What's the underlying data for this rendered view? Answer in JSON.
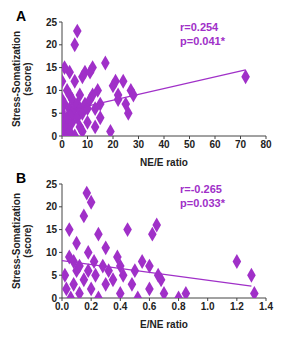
{
  "chart_data": [
    {
      "type": "scatter",
      "panel": "A",
      "x_label": "NE/E ratio",
      "y_label": "Stress-Somatization (score)",
      "color": "#a030c8",
      "marker": "diamond",
      "annotations": [
        "r=0.254",
        "p=0.041*"
      ],
      "xlim": [
        0,
        80
      ],
      "xticks": [
        0,
        10,
        20,
        30,
        40,
        50,
        60,
        70,
        80
      ],
      "ylim": [
        0,
        25
      ],
      "yticks": [
        0,
        5,
        10,
        15,
        20,
        25
      ],
      "x": [
        0,
        0,
        0,
        0,
        1,
        1,
        1,
        1,
        1,
        2,
        2,
        2,
        2,
        3,
        3,
        3,
        3,
        4,
        4,
        4,
        5,
        5,
        5,
        5,
        6,
        6,
        6,
        7,
        7,
        7,
        8,
        8,
        8,
        9,
        9,
        10,
        10,
        11,
        11,
        12,
        12,
        13,
        13,
        14,
        15,
        15,
        17,
        19,
        20,
        21,
        22,
        22,
        25,
        24,
        26,
        27,
        28,
        72
      ],
      "values": [
        2,
        5,
        8,
        12,
        0,
        3,
        7,
        15,
        1,
        2,
        4,
        10,
        0,
        1,
        6,
        9,
        14,
        3,
        5,
        8,
        0,
        6,
        12,
        20,
        23,
        4,
        7,
        2,
        9,
        6,
        13,
        5,
        1,
        14,
        7,
        6,
        3,
        8,
        14,
        15,
        9,
        6,
        2,
        10,
        4,
        7,
        16,
        1,
        11,
        12,
        9,
        8,
        7,
        12,
        5,
        10,
        9,
        13
      ],
      "trend_line": {
        "x": [
          0,
          72
        ],
        "values": [
          5.3,
          14.5
        ]
      }
    },
    {
      "type": "scatter",
      "panel": "B",
      "x_label": "E/NE ratio",
      "y_label": "Stress-Somatization (score)",
      "color": "#a030c8",
      "marker": "diamond",
      "annotations": [
        "r=-0.265",
        "p=0.033*"
      ],
      "xlim": [
        0,
        1.4
      ],
      "xticks": [
        {
          "value": 0,
          "label": "0.0"
        },
        0.2,
        0.4,
        0.6,
        0.8,
        {
          "value": 1,
          "label": "1.0"
        },
        1.2,
        1.4
      ],
      "ylim": [
        0,
        25
      ],
      "yticks": [
        0,
        5,
        10,
        15,
        20,
        25
      ],
      "x": [
        0.02,
        0.03,
        0.05,
        0.05,
        0.06,
        0.08,
        0.08,
        0.1,
        0.1,
        0.12,
        0.12,
        0.15,
        0.15,
        0.17,
        0.18,
        0.18,
        0.2,
        0.2,
        0.22,
        0.23,
        0.25,
        0.25,
        0.28,
        0.3,
        0.3,
        0.32,
        0.35,
        0.38,
        0.4,
        0.4,
        0.42,
        0.45,
        0.48,
        0.5,
        0.52,
        0.55,
        0.6,
        0.6,
        0.62,
        0.65,
        0.66,
        0.68,
        0.7,
        0.8,
        0.85,
        1.2,
        1.3,
        1.32
      ],
      "values": [
        5,
        2,
        15,
        9,
        0,
        3,
        8,
        6,
        12,
        1,
        7,
        18,
        4,
        23,
        10,
        6,
        21,
        2,
        8,
        5,
        14,
        0,
        7,
        3,
        11,
        6,
        4,
        9,
        1,
        7,
        5,
        15,
        3,
        6,
        0,
        8,
        7,
        2,
        14,
        16,
        5,
        4,
        1,
        0,
        1,
        8,
        5,
        1
      ],
      "trend_line": {
        "x": [
          0,
          1.3
        ],
        "values": [
          8.2,
          2.6
        ]
      }
    }
  ]
}
